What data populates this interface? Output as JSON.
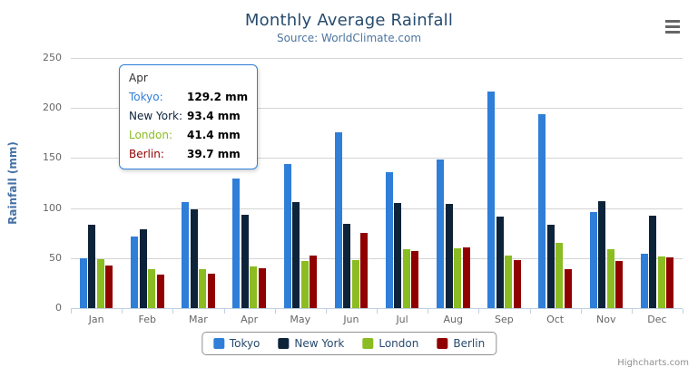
{
  "header": {
    "title": "Monthly Average Rainfall",
    "subtitle": "Source: WorldClimate.com"
  },
  "menu_button": {
    "icon": "hamburger-icon"
  },
  "chart_data": {
    "type": "bar",
    "title": "Monthly Average Rainfall",
    "subtitle": "Source: WorldClimate.com",
    "xlabel": "",
    "ylabel": "Rainfall (mm)",
    "ylim": [
      0,
      250
    ],
    "yticks": [
      0,
      50,
      100,
      150,
      200,
      250
    ],
    "grid": true,
    "legend_position": "bottom",
    "categories": [
      "Jan",
      "Feb",
      "Mar",
      "Apr",
      "May",
      "Jun",
      "Jul",
      "Aug",
      "Sep",
      "Oct",
      "Nov",
      "Dec"
    ],
    "series": [
      {
        "name": "Tokyo",
        "color": "#2f7ed8",
        "values": [
          49.9,
          71.5,
          106.4,
          129.2,
          144.0,
          176.0,
          135.6,
          148.5,
          216.4,
          194.1,
          95.6,
          54.4
        ]
      },
      {
        "name": "New York",
        "color": "#0d233a",
        "values": [
          83.6,
          78.8,
          98.5,
          93.4,
          106.0,
          84.5,
          105.0,
          104.3,
          91.2,
          83.5,
          106.6,
          92.3
        ]
      },
      {
        "name": "London",
        "color": "#8bbc21",
        "values": [
          48.9,
          38.8,
          39.3,
          41.4,
          47.0,
          48.3,
          59.0,
          59.6,
          52.4,
          65.2,
          59.3,
          51.2
        ]
      },
      {
        "name": "Berlin",
        "color": "#910000",
        "values": [
          42.4,
          33.2,
          34.5,
          39.7,
          52.6,
          75.5,
          57.4,
          60.4,
          47.6,
          39.1,
          46.8,
          51.1
        ]
      }
    ]
  },
  "tooltip": {
    "category": "Apr",
    "rows": [
      {
        "label": "Tokyo:",
        "value": "129.2 mm",
        "color": "#2f7ed8"
      },
      {
        "label": "New York:",
        "value": "93.4 mm",
        "color": "#0d233a"
      },
      {
        "label": "London:",
        "value": "41.4 mm",
        "color": "#8bbc21"
      },
      {
        "label": "Berlin:",
        "value": "39.7 mm",
        "color": "#910000"
      }
    ]
  },
  "footer": {
    "credits": "Highcharts.com"
  }
}
